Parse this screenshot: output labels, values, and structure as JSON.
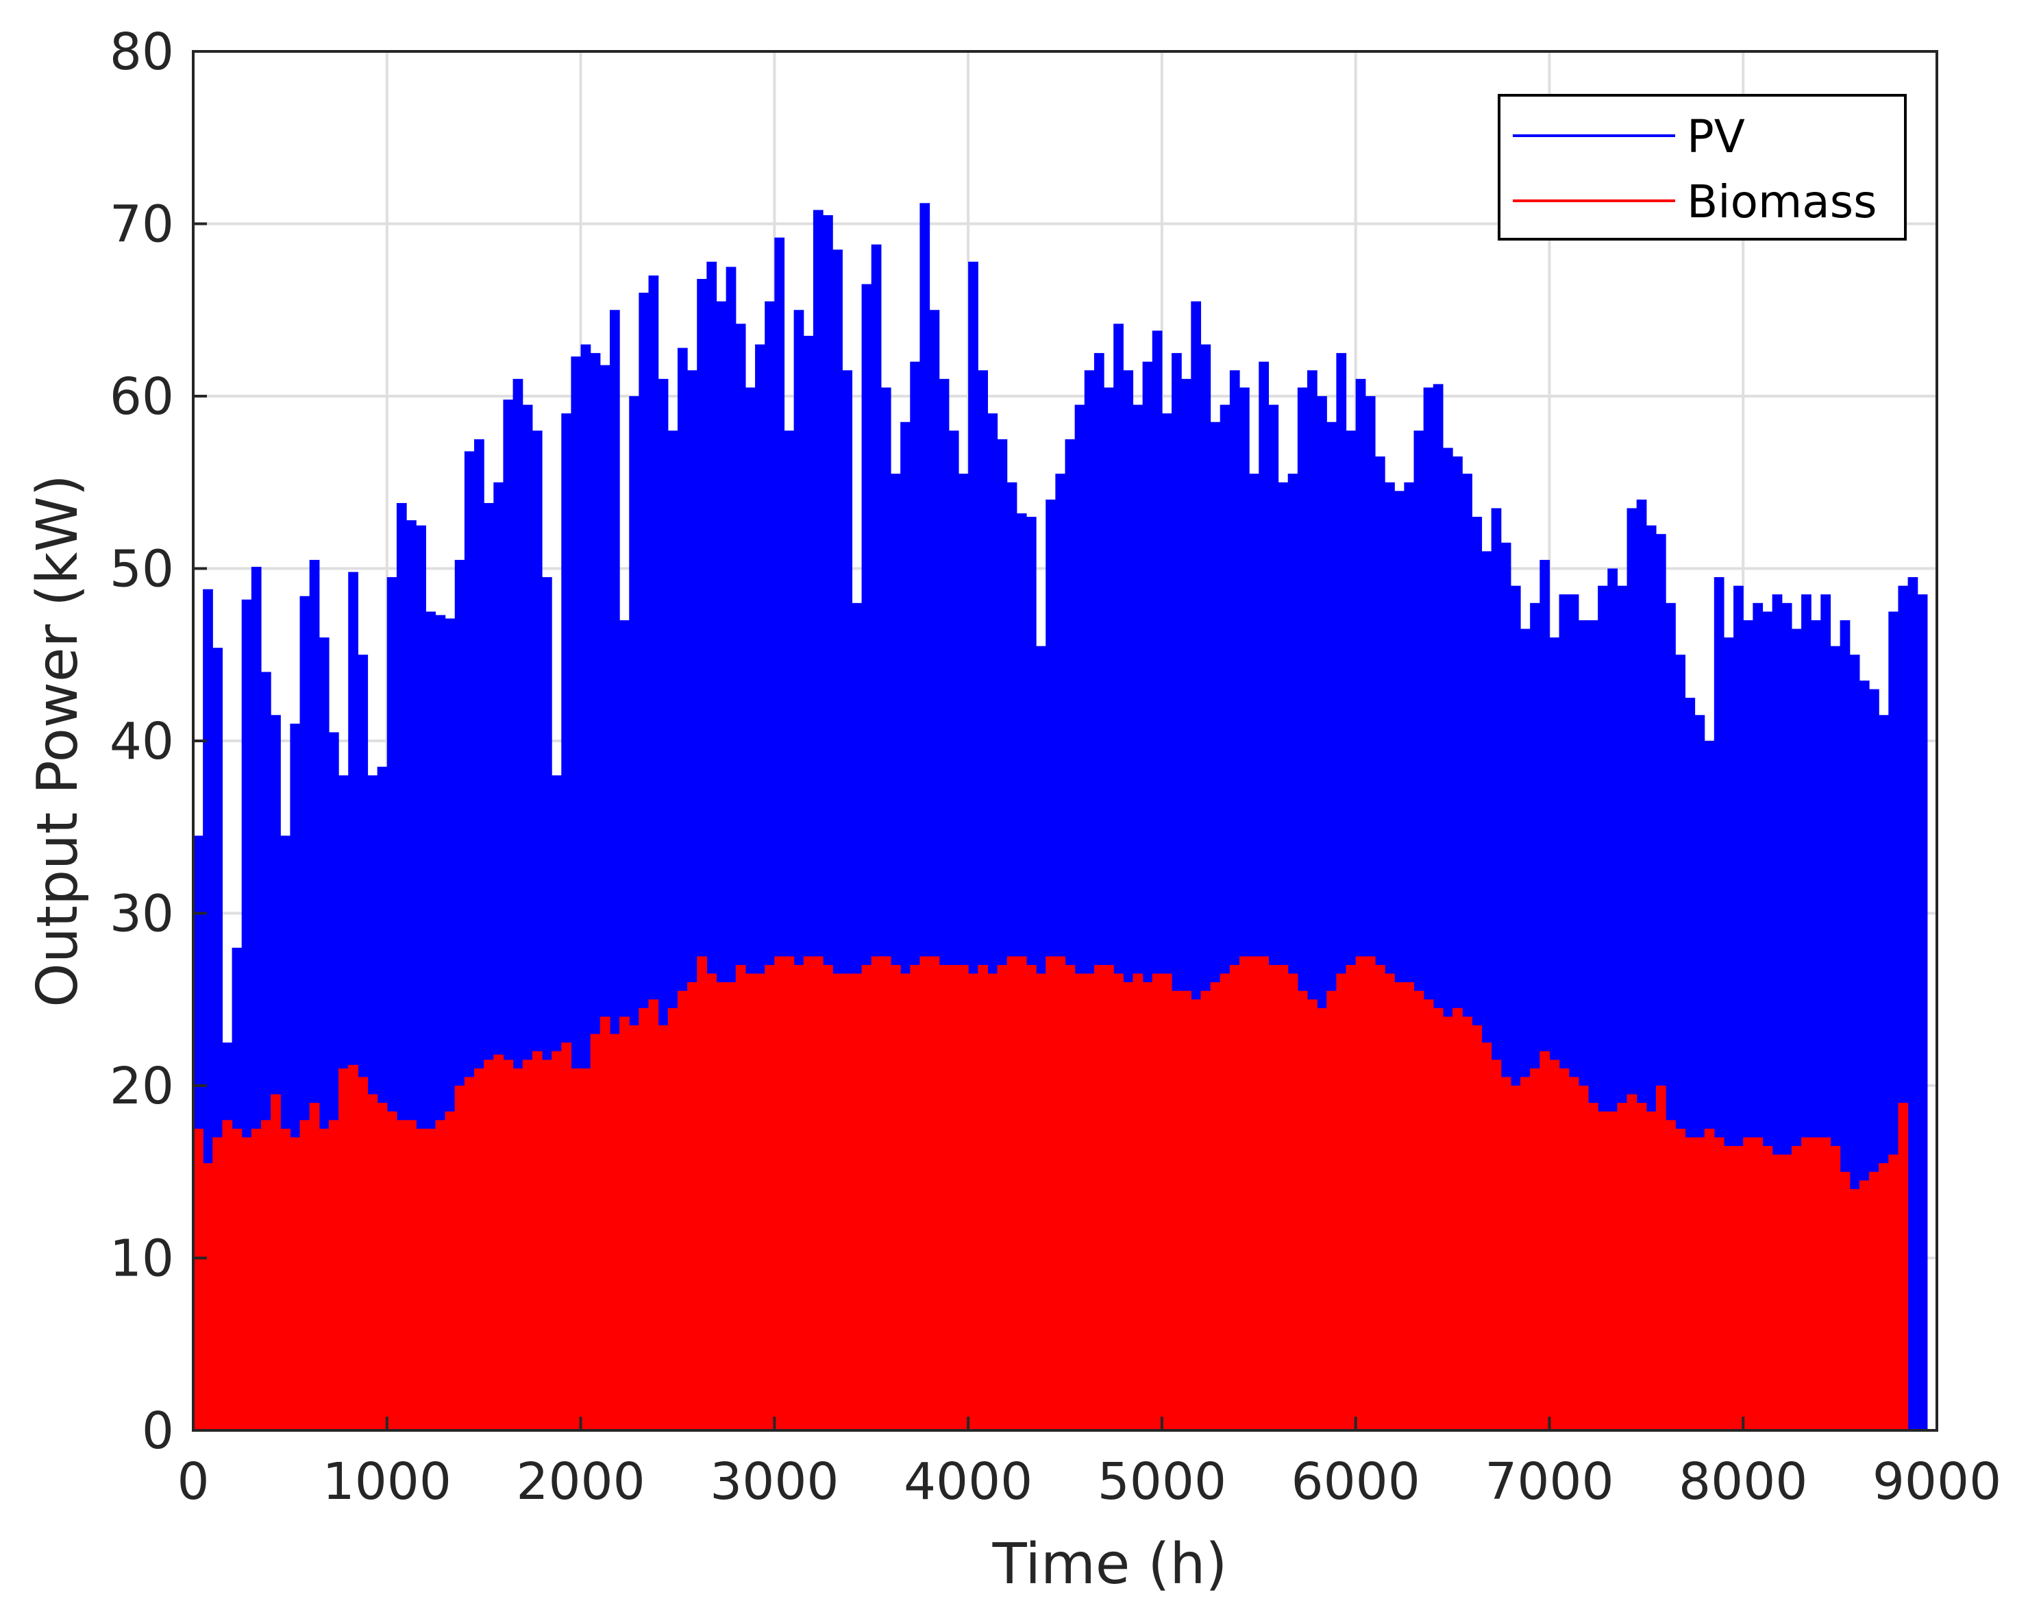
{
  "chart_data": {
    "type": "bar",
    "title": "",
    "xlabel": "Time (h)",
    "ylabel": "Output Power (kW)",
    "xlim": [
      0,
      9000
    ],
    "ylim": [
      0,
      80
    ],
    "xticks": [
      0,
      1000,
      2000,
      3000,
      4000,
      5000,
      6000,
      7000,
      8000,
      9000
    ],
    "yticks": [
      0,
      10,
      20,
      30,
      40,
      50,
      60,
      70,
      80
    ],
    "grid": true,
    "legend_position": "top-right",
    "bin_width_h": 50,
    "x_start_h": 0,
    "series": [
      {
        "name": "PV",
        "color": "#0000ff",
        "values": [
          34.5,
          48.8,
          45.4,
          22.5,
          28.0,
          48.2,
          50.1,
          44.0,
          41.5,
          34.5,
          41.0,
          48.4,
          50.5,
          46.0,
          40.5,
          38.0,
          49.8,
          45.0,
          38.0,
          38.5,
          49.5,
          53.8,
          52.8,
          52.5,
          47.5,
          47.3,
          47.1,
          50.5,
          56.8,
          57.5,
          53.8,
          55.0,
          59.8,
          61.0,
          59.5,
          58.0,
          49.5,
          38.0,
          59.0,
          62.3,
          63.0,
          62.5,
          61.8,
          65.0,
          47.0,
          60.0,
          66.0,
          67.0,
          61.0,
          58.0,
          62.8,
          61.5,
          66.8,
          67.8,
          65.5,
          67.5,
          64.2,
          60.5,
          63.0,
          65.5,
          69.2,
          58.0,
          65.0,
          63.5,
          70.8,
          70.5,
          68.5,
          61.5,
          48.0,
          66.5,
          68.8,
          60.5,
          55.5,
          58.5,
          62.0,
          71.2,
          65.0,
          61.0,
          58.0,
          55.5,
          67.8,
          61.5,
          59.0,
          57.5,
          55.0,
          53.2,
          53.0,
          45.5,
          54.0,
          55.5,
          57.5,
          59.5,
          61.5,
          62.5,
          60.5,
          64.2,
          61.5,
          59.5,
          62.0,
          63.8,
          59.0,
          62.5,
          61.0,
          65.5,
          63.0,
          58.5,
          59.5,
          61.5,
          60.5,
          55.5,
          62.0,
          59.5,
          55.0,
          55.5,
          60.5,
          61.5,
          60.0,
          58.5,
          62.5,
          58.0,
          61.0,
          60.0,
          56.5,
          55.0,
          54.5,
          55.0,
          58.0,
          60.5,
          60.7,
          57.0,
          56.5,
          55.5,
          53.0,
          51.0,
          53.5,
          51.5,
          49.0,
          46.5,
          48.0,
          50.5,
          46.0,
          48.5,
          48.5,
          47.0,
          47.0,
          49.0,
          50.0,
          49.0,
          53.5,
          54.0,
          52.5,
          52.0,
          48.0,
          45.0,
          42.5,
          41.5,
          40.0,
          49.5,
          46.0,
          49.0,
          47.0,
          48.0,
          47.5,
          48.5,
          48.0,
          46.5,
          48.5,
          47.0,
          48.5,
          45.5,
          47.0,
          45.0,
          43.5,
          43.0,
          41.5,
          47.5,
          49.0,
          49.5,
          48.5
        ]
      },
      {
        "name": "Biomass",
        "color": "#ff0000",
        "values": [
          17.5,
          15.5,
          17.0,
          18.0,
          17.5,
          17.0,
          17.5,
          18.0,
          19.5,
          17.5,
          17.0,
          18.0,
          19.0,
          17.5,
          18.0,
          21.0,
          21.2,
          20.5,
          19.5,
          19.0,
          18.5,
          18.0,
          18.0,
          17.5,
          17.5,
          18.0,
          18.5,
          20.0,
          20.5,
          21.0,
          21.5,
          21.8,
          21.5,
          21.0,
          21.5,
          22.0,
          21.5,
          22.0,
          22.5,
          21.0,
          21.0,
          23.0,
          24.0,
          23.0,
          24.0,
          23.5,
          24.5,
          25.0,
          23.5,
          24.5,
          25.5,
          26.0,
          27.5,
          26.5,
          26.0,
          26.0,
          27.0,
          26.5,
          26.5,
          27.0,
          27.5,
          27.5,
          27.0,
          27.5,
          27.5,
          27.0,
          26.5,
          26.5,
          26.5,
          27.0,
          27.5,
          27.5,
          27.0,
          26.5,
          27.0,
          27.5,
          27.5,
          27.0,
          27.0,
          27.0,
          26.5,
          27.0,
          26.5,
          27.0,
          27.5,
          27.5,
          27.0,
          26.5,
          27.5,
          27.5,
          27.0,
          26.5,
          26.5,
          27.0,
          27.0,
          26.5,
          26.0,
          26.5,
          26.0,
          26.5,
          26.5,
          25.5,
          25.5,
          25.0,
          25.5,
          26.0,
          26.5,
          27.0,
          27.5,
          27.5,
          27.5,
          27.0,
          27.0,
          26.5,
          25.5,
          25.0,
          24.5,
          25.5,
          26.5,
          27.0,
          27.5,
          27.5,
          27.0,
          26.5,
          26.0,
          26.0,
          25.5,
          25.0,
          24.5,
          24.0,
          24.5,
          24.0,
          23.5,
          22.5,
          21.5,
          20.5,
          20.0,
          20.5,
          21.0,
          22.0,
          21.5,
          21.0,
          20.5,
          20.0,
          19.0,
          18.5,
          18.5,
          19.0,
          19.5,
          19.0,
          18.5,
          20.0,
          18.0,
          17.5,
          17.0,
          17.0,
          17.5,
          17.0,
          16.5,
          16.5,
          17.0,
          17.0,
          16.5,
          16.0,
          16.0,
          16.5,
          17.0,
          17.0,
          17.0,
          16.5,
          15.0,
          14.0,
          14.5,
          15.0,
          15.5,
          16.0,
          19.0
        ]
      }
    ]
  }
}
